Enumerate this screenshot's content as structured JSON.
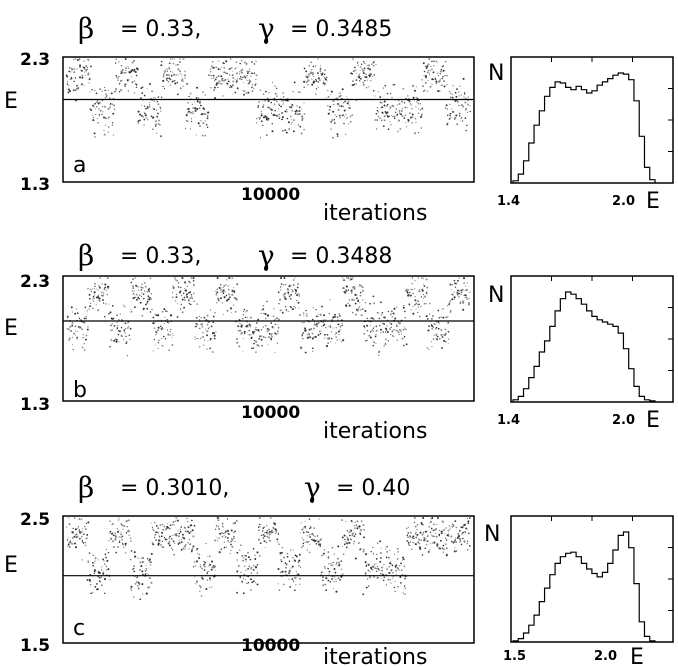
{
  "chart_data": [
    {
      "type": "scatter",
      "panel_label": "a",
      "title": {
        "beta_symbol": "β",
        "beta_text": "= 0.33,",
        "gamma_symbol": "γ",
        "gamma_text": "= 0.3485"
      },
      "ylabel": "E",
      "xlabel": "iterations",
      "xtick_label": "10000",
      "xtick_value": 10000,
      "ytick_labels": [
        "2.3",
        "1.3"
      ],
      "ylim": [
        1.3,
        2.3
      ],
      "xlim": [
        0,
        20000
      ],
      "threshold_y": 1.96,
      "segments_high_low": [
        "H",
        "L",
        "H",
        "L",
        "H",
        "L",
        "H",
        "H",
        "L",
        "L",
        "H",
        "L",
        "H",
        "L",
        "L",
        "H",
        "L"
      ],
      "hist": {
        "ylabel": "N",
        "xlabel": "E",
        "xtick_labels": [
          "1.4",
          "2.0"
        ],
        "xlim": [
          1.4,
          2.3
        ],
        "bins": [
          1.4,
          1.43,
          1.46,
          1.49,
          1.52,
          1.55,
          1.58,
          1.61,
          1.64,
          1.67,
          1.7,
          1.73,
          1.76,
          1.79,
          1.82,
          1.85,
          1.88,
          1.91,
          1.94,
          1.97,
          2.0,
          2.03,
          2.06,
          2.09,
          2.12,
          2.15,
          2.18
        ],
        "counts": [
          2,
          8,
          20,
          36,
          52,
          65,
          78,
          86,
          91,
          90,
          86,
          84,
          87,
          84,
          81,
          83,
          88,
          91,
          94,
          97,
          99,
          98,
          93,
          74,
          42,
          14,
          3
        ]
      }
    },
    {
      "type": "scatter",
      "panel_label": "b",
      "title": {
        "beta_symbol": "β",
        "beta_text": "= 0.33,",
        "gamma_symbol": "γ",
        "gamma_text": "= 0.3488"
      },
      "ylabel": "E",
      "xlabel": "iterations",
      "xtick_label": "10000",
      "xtick_value": 10000,
      "ytick_labels": [
        "2.3",
        "1.3"
      ],
      "ylim": [
        1.3,
        2.3
      ],
      "xlim": [
        0,
        20000
      ],
      "threshold_y": 1.94,
      "segments_high_low": [
        "L",
        "H",
        "L",
        "H",
        "L",
        "H",
        "L",
        "H",
        "L",
        "L",
        "H",
        "L",
        "L",
        "H",
        "L",
        "L",
        "H",
        "L",
        "H"
      ],
      "hist": {
        "ylabel": "N",
        "xlabel": "E",
        "xtick_labels": [
          "1.4",
          "2.0"
        ],
        "xlim": [
          1.4,
          2.3
        ],
        "bins": [
          1.4,
          1.43,
          1.46,
          1.49,
          1.52,
          1.55,
          1.58,
          1.61,
          1.64,
          1.67,
          1.7,
          1.73,
          1.76,
          1.79,
          1.82,
          1.85,
          1.88,
          1.91,
          1.94,
          1.97,
          2.0,
          2.03,
          2.06,
          2.09,
          2.12,
          2.15,
          2.18
        ],
        "counts": [
          2,
          5,
          12,
          22,
          32,
          45,
          55,
          68,
          82,
          93,
          99,
          97,
          93,
          88,
          82,
          77,
          74,
          72,
          70,
          68,
          62,
          48,
          30,
          14,
          5,
          2,
          1
        ]
      }
    },
    {
      "type": "scatter",
      "panel_label": "c",
      "title": {
        "beta_symbol": "β",
        "beta_text": "= 0.3010,",
        "gamma_symbol": "γ",
        "gamma_text": "= 0.40"
      },
      "ylabel": "E",
      "xlabel": "iterations",
      "xtick_label": "10000",
      "xtick_value": 10000,
      "ytick_labels": [
        "2.5",
        "1.5"
      ],
      "ylim": [
        1.5,
        2.5
      ],
      "xlim": [
        0,
        20000
      ],
      "threshold_y": 2.03,
      "segments_high_low": [
        "H",
        "L",
        "H",
        "L",
        "H",
        "H",
        "L",
        "H",
        "L",
        "H",
        "L",
        "H",
        "L",
        "H",
        "L",
        "L",
        "H",
        "H",
        "H"
      ],
      "hist": {
        "ylabel": "N",
        "xlabel": "E",
        "xtick_labels": [
          "1.5",
          "2.0"
        ],
        "xlim": [
          1.5,
          2.4
        ],
        "bins": [
          1.5,
          1.53,
          1.56,
          1.59,
          1.62,
          1.65,
          1.68,
          1.71,
          1.74,
          1.77,
          1.8,
          1.83,
          1.86,
          1.89,
          1.92,
          1.95,
          1.98,
          2.01,
          2.04,
          2.07,
          2.1,
          2.13,
          2.16,
          2.19,
          2.22,
          2.25,
          2.28
        ],
        "counts": [
          1,
          3,
          8,
          15,
          24,
          36,
          48,
          60,
          70,
          76,
          79,
          80,
          76,
          70,
          65,
          61,
          58,
          62,
          70,
          82,
          95,
          98,
          84,
          52,
          18,
          5,
          1
        ]
      }
    }
  ]
}
